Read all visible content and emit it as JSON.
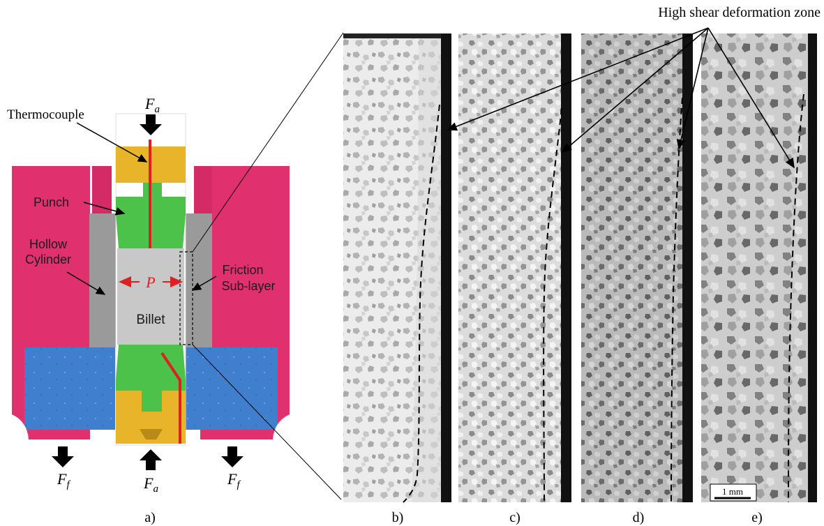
{
  "schematic": {
    "thermocouple": "Thermocouple",
    "punch": "Punch",
    "hollow_cylinder_line1": "Hollow",
    "hollow_cylinder_line2": "Cylinder",
    "billet": "Billet",
    "pressure": "P",
    "friction_line1": "Friction",
    "friction_line2": "Sub-layer",
    "force_axial": "F",
    "force_axial_sub": "a",
    "force_friction": "F",
    "force_friction_sub": "f"
  },
  "micrographs": {
    "title": "High shear deformation zone",
    "scale_bar": "1 mm"
  },
  "panel_labels": [
    "a)",
    "b)",
    "c)",
    "d)",
    "e)"
  ],
  "colors": {
    "die": "#e0306e",
    "cylinder": "#9a9a9a",
    "punch_green": "#4cc24a",
    "tool_yellow": "#e8b52a",
    "base_blue": "#3f7fce",
    "billet": "#c8c8c8",
    "thermocouple_wire": "#e02020",
    "pressure_arrow": "#e02020"
  }
}
